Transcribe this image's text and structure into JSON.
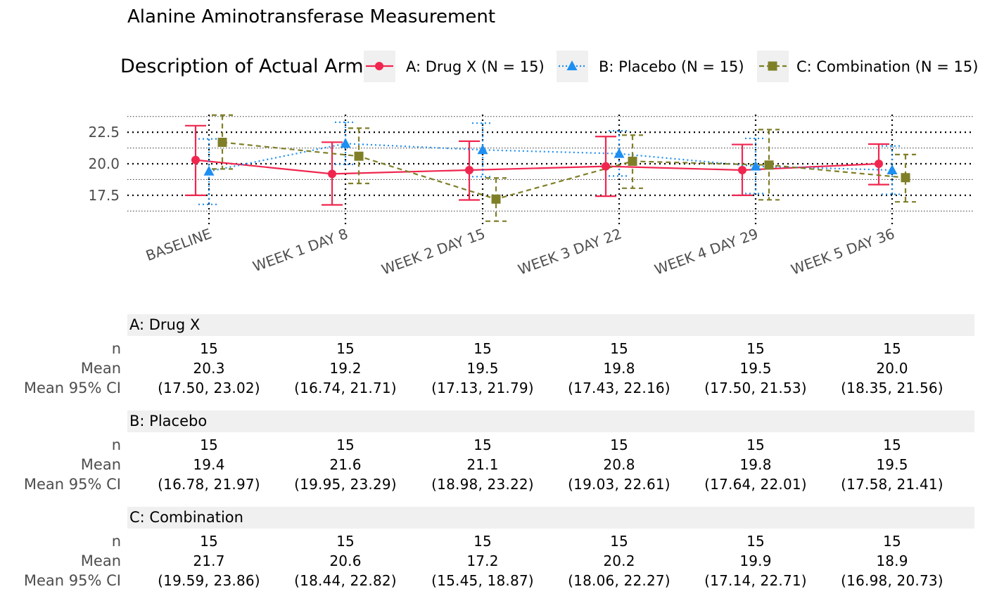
{
  "title": "Alanine Aminotransferase Measurement",
  "legend": {
    "title": "Description of Actual Arm",
    "entries": [
      {
        "label": "A: Drug X (N = 15)",
        "color": "#f0264f",
        "marker": "circle",
        "line": "solid"
      },
      {
        "label": "B: Placebo (N = 15)",
        "color": "#1e8ff2",
        "marker": "triangle",
        "line": "dotted"
      },
      {
        "label": "C: Combination (N = 15)",
        "color": "#7f7f28",
        "marker": "square",
        "line": "dashed"
      }
    ]
  },
  "chart_data": {
    "type": "line",
    "title": "Alanine Aminotransferase Measurement",
    "categories": [
      "BASELINE",
      "WEEK 1 DAY 8",
      "WEEK 2 DAY 15",
      "WEEK 3 DAY 22",
      "WEEK 4 DAY 29",
      "WEEK 5 DAY 36"
    ],
    "y_ticks": [
      "17.5",
      "20.0",
      "22.5"
    ],
    "ylim": [
      16.1,
      23.9
    ],
    "error_bars": "Mean 95% CI",
    "series": [
      {
        "name": "A: Drug X (N = 15)",
        "mean": [
          20.3,
          19.2,
          19.5,
          19.8,
          19.5,
          20.0
        ],
        "ci_low": [
          17.5,
          16.74,
          17.13,
          17.43,
          17.5,
          18.35
        ],
        "ci_high": [
          23.02,
          21.71,
          21.79,
          22.16,
          21.53,
          21.56
        ]
      },
      {
        "name": "B: Placebo (N = 15)",
        "mean": [
          19.4,
          21.6,
          21.1,
          20.8,
          19.8,
          19.5
        ],
        "ci_low": [
          16.78,
          19.95,
          18.98,
          19.03,
          17.64,
          17.58
        ],
        "ci_high": [
          21.97,
          23.29,
          23.22,
          22.61,
          22.01,
          21.41
        ]
      },
      {
        "name": "C: Combination (N = 15)",
        "mean": [
          21.7,
          20.6,
          17.2,
          20.2,
          19.9,
          18.9
        ],
        "ci_low": [
          19.59,
          18.44,
          15.45,
          18.06,
          17.14,
          16.98
        ],
        "ci_high": [
          23.86,
          22.82,
          18.87,
          22.27,
          22.71,
          20.73
        ]
      }
    ]
  },
  "table": {
    "row_labels": [
      "n",
      "Mean",
      "Mean 95% CI"
    ],
    "groups": [
      {
        "name": "A: Drug X",
        "n": [
          "15",
          "15",
          "15",
          "15",
          "15",
          "15"
        ],
        "mean": [
          "20.3",
          "19.2",
          "19.5",
          "19.8",
          "19.5",
          "20.0"
        ],
        "ci": [
          "(17.50, 23.02)",
          "(16.74, 21.71)",
          "(17.13, 21.79)",
          "(17.43, 22.16)",
          "(17.50, 21.53)",
          "(18.35, 21.56)"
        ]
      },
      {
        "name": "B: Placebo",
        "n": [
          "15",
          "15",
          "15",
          "15",
          "15",
          "15"
        ],
        "mean": [
          "19.4",
          "21.6",
          "21.1",
          "20.8",
          "19.8",
          "19.5"
        ],
        "ci": [
          "(16.78, 21.97)",
          "(19.95, 23.29)",
          "(18.98, 23.22)",
          "(19.03, 22.61)",
          "(17.64, 22.01)",
          "(17.58, 21.41)"
        ]
      },
      {
        "name": "C: Combination",
        "n": [
          "15",
          "15",
          "15",
          "15",
          "15",
          "15"
        ],
        "mean": [
          "21.7",
          "20.6",
          "17.2",
          "20.2",
          "19.9",
          "18.9"
        ],
        "ci": [
          "(19.59, 23.86)",
          "(18.44, 22.82)",
          "(15.45, 18.87)",
          "(18.06, 22.27)",
          "(17.14, 22.71)",
          "(16.98, 20.73)"
        ]
      }
    ]
  }
}
